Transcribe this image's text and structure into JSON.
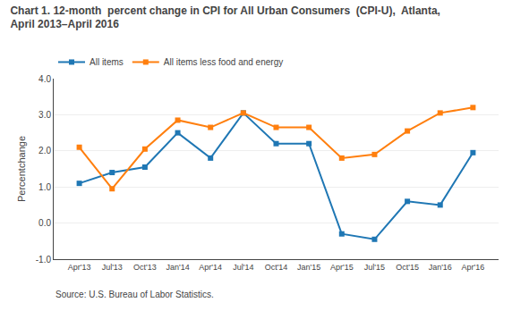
{
  "chart_data": {
    "type": "line",
    "title": "Chart 1. 12-month  percent change in CPI for All Urban Consumers  (CPI-U),  Atlanta,\nApril 2013–April 2016",
    "ylabel": "Percentchange",
    "annotations": [
      "Source: U.S. Bureau of Labor Statistics."
    ],
    "categories": [
      "Apr'13",
      "Jul'13",
      "Oct'13",
      "Jan'14",
      "Apr'14",
      "Jul'14",
      "Oct'14",
      "Jan'15",
      "Apr'15",
      "Jul'15",
      "Oct'15",
      "Jan'16",
      "Apr'16"
    ],
    "series": [
      {
        "name": "All items",
        "values": [
          1.1,
          1.4,
          1.55,
          2.5,
          1.8,
          3.05,
          2.2,
          2.2,
          -0.3,
          -0.45,
          0.6,
          0.5,
          1.95
        ]
      },
      {
        "name": "All items less food and energy",
        "values": [
          2.1,
          0.95,
          2.05,
          2.85,
          2.65,
          3.05,
          2.65,
          2.65,
          1.8,
          1.9,
          2.55,
          3.05,
          3.2
        ]
      }
    ],
    "ylim": [
      -1.0,
      4.0
    ],
    "yticks": [
      {
        "value": -1,
        "label": "-1.0"
      },
      {
        "value": 0,
        "label": "0.0"
      },
      {
        "value": 1,
        "label": "1.0"
      },
      {
        "value": 2,
        "label": "2.0"
      },
      {
        "value": 3,
        "label": "3.0"
      },
      {
        "value": 4,
        "label": "4.0"
      }
    ],
    "grid": true,
    "legend": "top",
    "marker": "square",
    "line_style": "solid"
  }
}
